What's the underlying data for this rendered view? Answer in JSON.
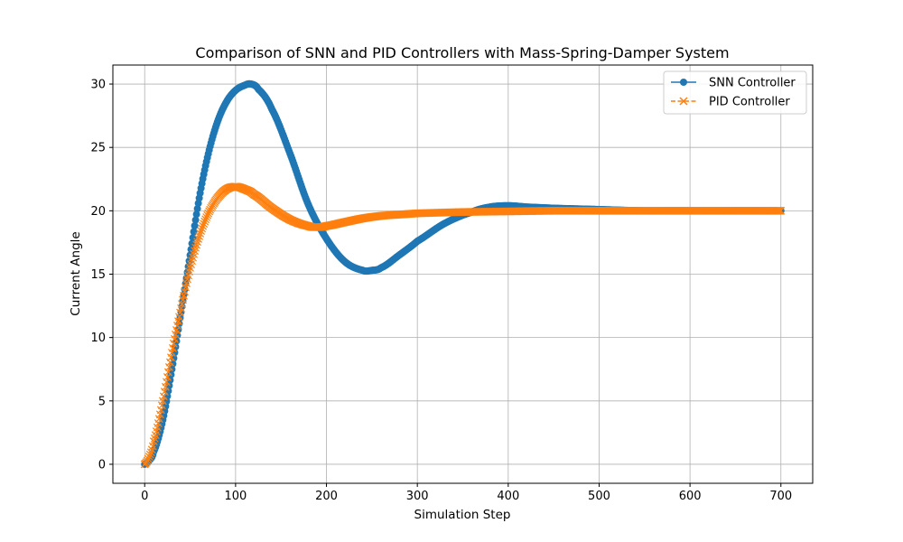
{
  "chart_data": {
    "type": "line",
    "title": "Comparison of SNN and PID Controllers with Mass-Spring-Damper System",
    "xlabel": "Simulation Step",
    "ylabel": "Current Angle",
    "xlim": [
      -35,
      735
    ],
    "ylim": [
      -1.5,
      31.5
    ],
    "xticks": [
      0,
      100,
      200,
      300,
      400,
      500,
      600,
      700
    ],
    "yticks": [
      0,
      5,
      10,
      15,
      20,
      25,
      30
    ],
    "grid": true,
    "legend_position": "top-right",
    "series": [
      {
        "name": "SNN Controller",
        "color": "#1f77b4",
        "marker": "circle",
        "linestyle": "solid",
        "x": [
          0,
          5,
          10,
          20,
          30,
          40,
          50,
          60,
          70,
          80,
          90,
          100,
          110,
          117,
          125,
          140,
          160,
          180,
          200,
          220,
          240,
          250,
          260,
          280,
          300,
          330,
          360,
          380,
          400,
          420,
          450,
          500,
          550,
          600,
          650,
          700
        ],
        "y": [
          0,
          0.3,
          1.0,
          3.5,
          7.5,
          12.0,
          16.5,
          21.0,
          24.5,
          27.0,
          28.6,
          29.5,
          29.9,
          30.0,
          29.6,
          28.0,
          24.5,
          20.5,
          17.8,
          16.0,
          15.3,
          15.3,
          15.5,
          16.5,
          17.6,
          19.0,
          19.9,
          20.3,
          20.4,
          20.3,
          20.2,
          20.1,
          20.0,
          20.0,
          20.0,
          20.0
        ]
      },
      {
        "name": "PID Controller",
        "color": "#ff7f0e",
        "marker": "x",
        "linestyle": "dashed",
        "x": [
          0,
          5,
          10,
          20,
          30,
          40,
          50,
          60,
          70,
          80,
          90,
          100,
          110,
          120,
          140,
          160,
          180,
          190,
          200,
          220,
          240,
          260,
          280,
          300,
          350,
          400,
          450,
          500,
          600,
          700
        ],
        "y": [
          0,
          0.6,
          1.8,
          5.0,
          8.8,
          12.3,
          15.5,
          18.0,
          19.8,
          21.0,
          21.7,
          21.9,
          21.7,
          21.3,
          20.2,
          19.3,
          18.8,
          18.7,
          18.8,
          19.1,
          19.4,
          19.6,
          19.7,
          19.8,
          19.9,
          19.95,
          20.0,
          20.0,
          20.0,
          20.0
        ]
      }
    ]
  }
}
